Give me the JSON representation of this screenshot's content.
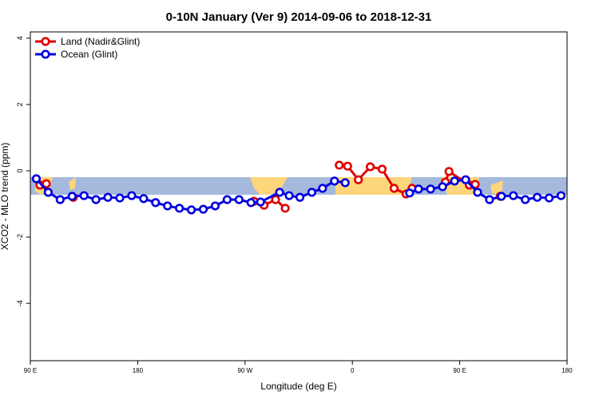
{
  "chart_data": {
    "type": "line",
    "title": "0-10N January (Ver 9)   2014-09-06 to 2018-12-31",
    "xlabel": "Longitude (deg E)",
    "ylabel": "XCO2 - MLO trend (ppm)",
    "xlim": [
      90,
      540
    ],
    "ylim": [
      -5.73,
      4.19
    ],
    "xticks": [
      {
        "value": 90,
        "label": "90 E"
      },
      {
        "value": 180,
        "label": "180"
      },
      {
        "value": 270,
        "label": "90 W"
      },
      {
        "value": 360,
        "label": "0"
      },
      {
        "value": 450,
        "label": "90 E"
      },
      {
        "value": 540,
        "label": "180"
      }
    ],
    "yticks": [
      4,
      2,
      0,
      -2,
      -4
    ],
    "legend": "top-left",
    "series": [
      {
        "name": "Land (Nadir&Glint)",
        "color": "#e00000",
        "x": [
          98,
          103.4,
          null,
          126,
          null,
          277.5,
          286,
          295.6,
          303.7,
          null,
          349,
          356,
          365,
          375,
          385,
          395,
          405,
          410,
          null,
          438,
          441,
          458,
          463,
          null,
          484
        ],
        "values": [
          -0.43,
          -0.39,
          null,
          -0.8,
          null,
          -0.92,
          -1.04,
          -0.87,
          -1.13,
          null,
          0.17,
          0.14,
          -0.27,
          0.12,
          0.05,
          -0.53,
          -0.7,
          -0.53,
          null,
          -0.34,
          -0.02,
          -0.43,
          -0.41,
          null,
          -0.77
        ]
      },
      {
        "name": "Ocean (Glint)",
        "color": "#0000e0",
        "x": [
          95,
          105,
          115,
          125,
          135,
          145,
          155,
          165,
          175,
          185,
          195,
          205,
          215,
          225,
          235,
          245,
          255,
          265,
          275,
          283,
          299,
          307,
          316,
          326,
          335,
          345,
          354,
          null,
          408,
          415.5,
          425.6,
          435.6,
          445.7,
          455,
          465,
          475,
          485,
          495,
          505,
          515,
          525,
          535
        ],
        "values": [
          -0.24,
          -0.65,
          -0.87,
          -0.77,
          -0.75,
          -0.87,
          -0.8,
          -0.82,
          -0.75,
          -0.84,
          -0.96,
          -1.06,
          -1.13,
          -1.18,
          -1.16,
          -1.06,
          -0.87,
          -0.87,
          -0.96,
          -0.94,
          -0.65,
          -0.75,
          -0.8,
          -0.65,
          -0.53,
          -0.31,
          -0.36,
          null,
          -0.67,
          -0.55,
          -0.55,
          -0.48,
          -0.31,
          -0.27,
          -0.65,
          -0.87,
          -0.77,
          -0.75,
          -0.87,
          -0.8,
          -0.82,
          -0.75
        ]
      }
    ]
  }
}
